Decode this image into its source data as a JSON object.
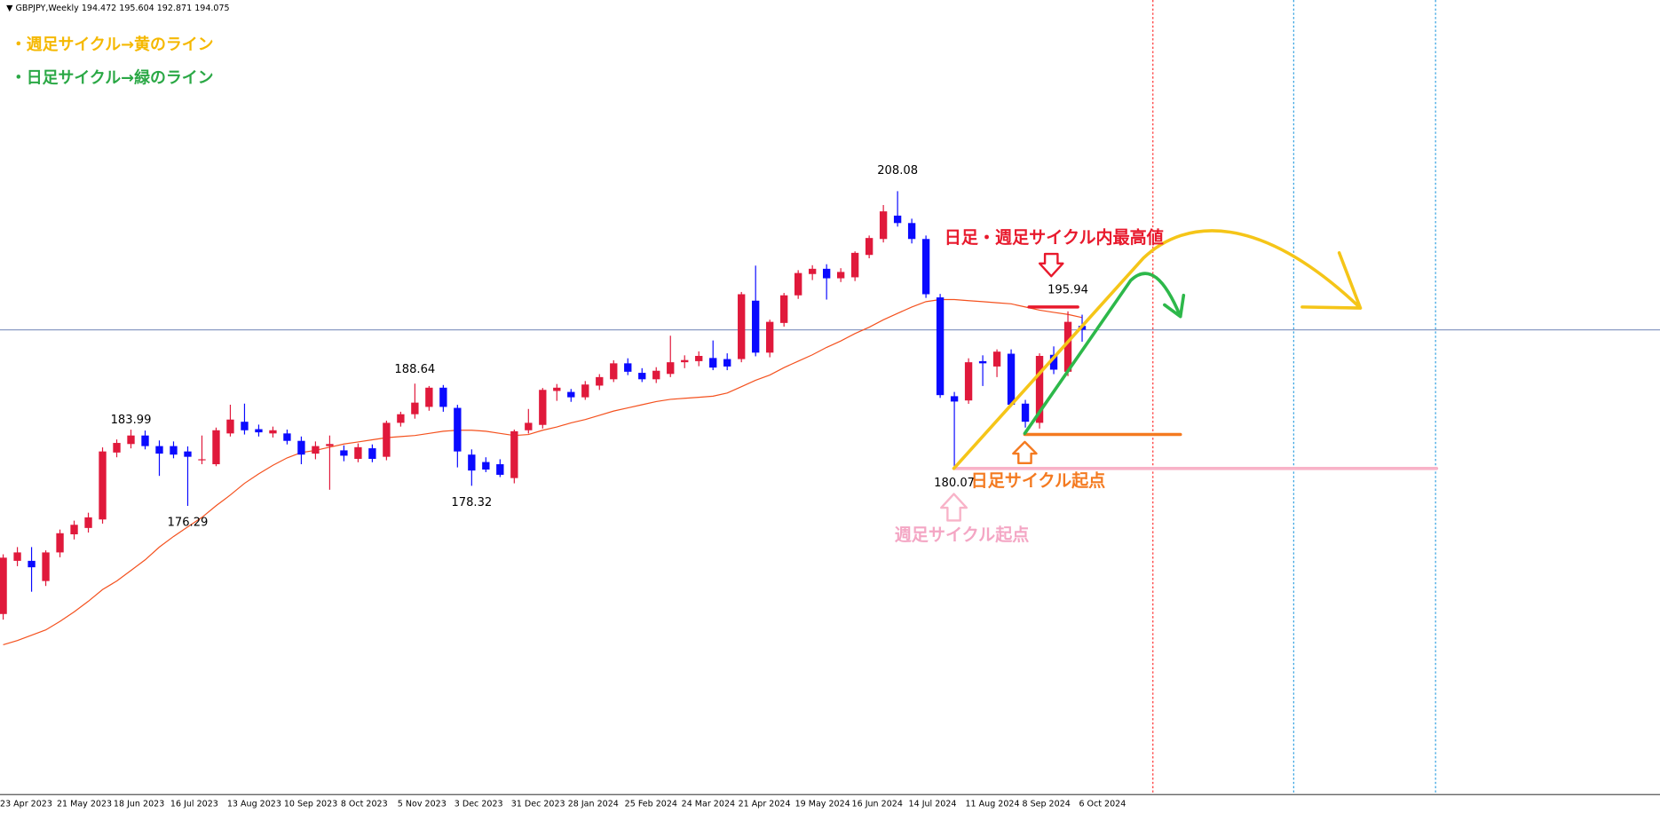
{
  "chart_data": {
    "type": "candlestick",
    "title": "GBPJPY,Weekly",
    "categories": [
      "23 Apr 2023",
      null,
      null,
      null,
      "21 May 2023",
      null,
      null,
      null,
      "18 Jun 2023",
      null,
      null,
      null,
      "16 Jul 2023",
      null,
      null,
      null,
      "13 Aug 2023",
      null,
      null,
      null,
      "10 Sep 2023",
      null,
      null,
      null,
      "8 Oct 2023",
      null,
      null,
      null,
      "5 Nov 2023",
      null,
      null,
      null,
      "3 Dec 2023",
      null,
      null,
      null,
      "31 Dec 2023",
      null,
      null,
      null,
      "28 Jan 2024",
      null,
      null,
      null,
      "25 Feb 2024",
      null,
      null,
      null,
      "24 Mar 2024",
      null,
      null,
      null,
      "21 Apr 2024",
      null,
      null,
      null,
      "19 May 2024",
      null,
      null,
      null,
      "16 Jun 2024",
      null,
      null,
      null,
      "14 Jul 2024",
      null,
      null,
      null,
      "11 Aug 2024",
      null,
      null,
      null,
      "8 Sep 2024",
      null,
      null,
      null,
      "6 Oct 2024"
    ],
    "open": [
      165.37,
      170.74,
      170.74,
      168.7,
      171.59,
      173.42,
      174.06,
      174.92,
      181.68,
      182.54,
      183.4,
      182.33,
      182.33,
      181.79,
      180.9,
      180.5,
      183.61,
      184.79,
      184.04,
      183.61,
      183.61,
      182.86,
      181.57,
      182.33,
      181.9,
      181.04,
      182.11,
      181.25,
      184.68,
      185.55,
      186.29,
      188.23,
      186.19,
      181.47,
      180.72,
      180.5,
      179.1,
      183.93,
      184.47,
      187.9,
      187.8,
      187.26,
      188.44,
      189.08,
      190.69,
      189.73,
      189.08,
      189.62,
      190.8,
      190.91,
      191.23,
      191.12,
      191.12,
      197.02,
      191.77,
      194.77,
      197.56,
      199.71,
      200.24,
      199.28,
      199.38,
      201.64,
      203.25,
      205.61,
      204.86,
      203.25,
      197.35,
      187.37,
      186.94,
      190.91,
      190.37,
      191.66,
      186.62,
      184.68,
      191.55,
      189.84,
      194.472
    ],
    "high": [
      171.4,
      172.13,
      172.13,
      171.8,
      173.9,
      174.8,
      175.6,
      182.2,
      183.0,
      183.99,
      183.9,
      182.9,
      182.8,
      182.3,
      183.4,
      184.2,
      186.51,
      186.62,
      184.5,
      184.3,
      184.0,
      183.3,
      182.8,
      183.4,
      182.4,
      182.6,
      182.5,
      184.9,
      185.8,
      188.64,
      188.4,
      188.5,
      186.5,
      182.0,
      181.2,
      181.0,
      184.0,
      186.08,
      188.2,
      188.6,
      188.1,
      188.9,
      189.6,
      191.0,
      191.2,
      190.2,
      190.3,
      193.48,
      191.5,
      191.9,
      193.0,
      191.7,
      197.9,
      200.56,
      195.1,
      197.8,
      200.1,
      200.6,
      200.7,
      200.3,
      202.0,
      203.6,
      206.68,
      208.08,
      205.3,
      203.6,
      197.7,
      187.8,
      191.2,
      191.5,
      192.1,
      192.1,
      187.0,
      191.7,
      192.4,
      195.94,
      195.604
    ],
    "low": [
      164.8,
      170.2,
      167.62,
      168.2,
      171.1,
      172.9,
      173.6,
      174.5,
      181.2,
      182.1,
      182.0,
      179.32,
      181.1,
      176.29,
      180.5,
      180.3,
      183.3,
      183.5,
      183.3,
      183.2,
      182.5,
      180.5,
      181.0,
      177.92,
      180.8,
      180.7,
      180.7,
      180.9,
      184.3,
      185.1,
      185.9,
      185.8,
      180.18,
      178.32,
      179.7,
      179.2,
      178.57,
      183.6,
      184.1,
      186.9,
      186.8,
      187.0,
      188.0,
      188.8,
      189.5,
      188.8,
      188.7,
      189.3,
      190.2,
      190.4,
      190.0,
      190.0,
      190.8,
      191.4,
      191.3,
      194.4,
      197.2,
      199.1,
      197.13,
      198.9,
      199.0,
      201.3,
      202.9,
      204.5,
      202.8,
      197.3,
      187.2,
      180.07,
      186.6,
      188.4,
      189.3,
      186.3,
      184.2,
      184.1,
      189.6,
      189.4,
      192.871
    ],
    "close": [
      171.06,
      171.59,
      170.09,
      171.59,
      173.53,
      174.38,
      175.13,
      181.79,
      182.65,
      183.4,
      182.33,
      181.57,
      181.47,
      181.25,
      181.0,
      183.93,
      185.01,
      183.93,
      183.72,
      183.93,
      182.86,
      181.47,
      182.33,
      182.54,
      181.36,
      182.22,
      181.04,
      184.68,
      185.55,
      186.72,
      188.23,
      186.29,
      181.79,
      179.86,
      179.96,
      179.43,
      183.83,
      184.68,
      188.01,
      188.23,
      187.26,
      188.55,
      189.3,
      190.69,
      189.84,
      189.08,
      189.94,
      190.8,
      191.02,
      191.44,
      190.26,
      190.37,
      197.67,
      191.77,
      194.88,
      197.56,
      199.81,
      200.24,
      199.28,
      199.92,
      201.85,
      203.35,
      206.04,
      204.86,
      203.25,
      197.67,
      187.48,
      186.83,
      190.8,
      190.69,
      191.87,
      186.51,
      184.79,
      191.44,
      190.05,
      194.88,
      194.075
    ],
    "up_color": "#e0193b",
    "down_color": "#0a0aff",
    "moving_average": {
      "color": "#f4511e",
      "values": [
        162.26,
        162.69,
        163.23,
        163.76,
        164.62,
        165.59,
        166.66,
        167.84,
        168.7,
        169.77,
        170.84,
        172.13,
        173.2,
        174.17,
        175.13,
        176.31,
        177.39,
        178.57,
        179.53,
        180.39,
        181.14,
        181.68,
        181.9,
        182.22,
        182.54,
        182.75,
        182.97,
        183.18,
        183.29,
        183.4,
        183.61,
        183.83,
        183.93,
        183.93,
        183.83,
        183.61,
        183.4,
        183.5,
        183.93,
        184.26,
        184.68,
        185.01,
        185.44,
        185.87,
        186.19,
        186.51,
        186.83,
        187.05,
        187.16,
        187.26,
        187.37,
        187.69,
        188.33,
        188.98,
        189.51,
        190.26,
        190.91,
        191.55,
        192.3,
        192.95,
        193.7,
        194.34,
        195.09,
        195.74,
        196.38,
        196.92,
        197.13,
        197.13,
        197.02,
        196.92,
        196.81,
        196.7,
        196.38,
        196.06,
        195.84,
        195.63,
        195.31
      ]
    },
    "ylim": [
      147.13,
      227.39
    ],
    "notes": [
      "・週足サイクル→黄のライン",
      "・日足サイクル→緑のライン"
    ],
    "labels": {
      "high": "日足・週足サイクル内最高値",
      "daily_start": "日足サイクル起点",
      "weekly_start": "週足サイクル起点"
    }
  }
}
